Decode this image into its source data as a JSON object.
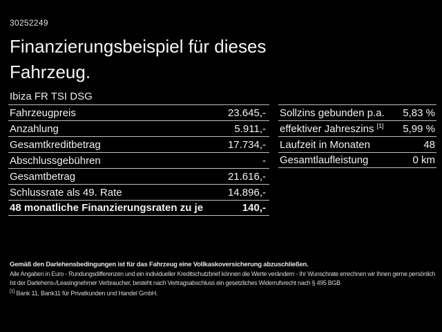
{
  "colors": {
    "background": "#000000",
    "text": "#f2f2f2",
    "separator": "#c2c2c2"
  },
  "header": {
    "vehicle_id": "30252249",
    "title_line1": "Finanzierungsbeispiel für dieses",
    "title_line2": "Fahrzeug.",
    "vehicle_name": "Ibiza FR TSI DSG"
  },
  "finance_table": {
    "rows": [
      {
        "label": "Fahrzeugpreis",
        "value": "23.645,-"
      },
      {
        "label": "Anzahlung",
        "value": "5.911,-"
      },
      {
        "label": "Gesamtkreditbetrag",
        "value": "17.734,-"
      },
      {
        "label": "Abschlussgebühren",
        "value": "-"
      },
      {
        "label": "Gesamtbetrag",
        "value": "21.616,-"
      },
      {
        "label": "Schlussrate als 49. Rate",
        "value": "14.896,-"
      },
      {
        "label": "48 monatliche Finanzierungsraten zu je",
        "value": "140,-"
      }
    ]
  },
  "conditions_table": {
    "rows": [
      {
        "label": "Sollzins gebunden p.a.",
        "value": "5,83 %"
      },
      {
        "label": "effektiver Jahreszins",
        "footnote_marker": "[1]",
        "value": "5,99 %"
      },
      {
        "label": "Laufzeit in Monaten",
        "value": "48"
      },
      {
        "label": "Gesamtlaufleistung",
        "value": "0 km"
      }
    ]
  },
  "footer": {
    "insurance_note": "Gemäß den Darlehensbedingungen ist für das Fahrzeug eine Vollkaskoversicherung abzuschließen.",
    "disclaimer_line1": "Alle Angaben in Euro - Rundungsdifferenzen und ein individueller Kreditschutzbrief können die Werte verändern - Ihr Wunschrate errechnen wir Ihnen gerne persönlich",
    "disclaimer_line2": "Ist der Darlehens-/Leasingnehmer Verbraucher, besteht nach Vertragsabschluss ein gesetzliches Widerrufsrecht nach § 495 BGB",
    "footnote_marker": "[1]",
    "footnote_text": "Bank 11, Bank11 für Privatkunden und Handel GmbH."
  }
}
